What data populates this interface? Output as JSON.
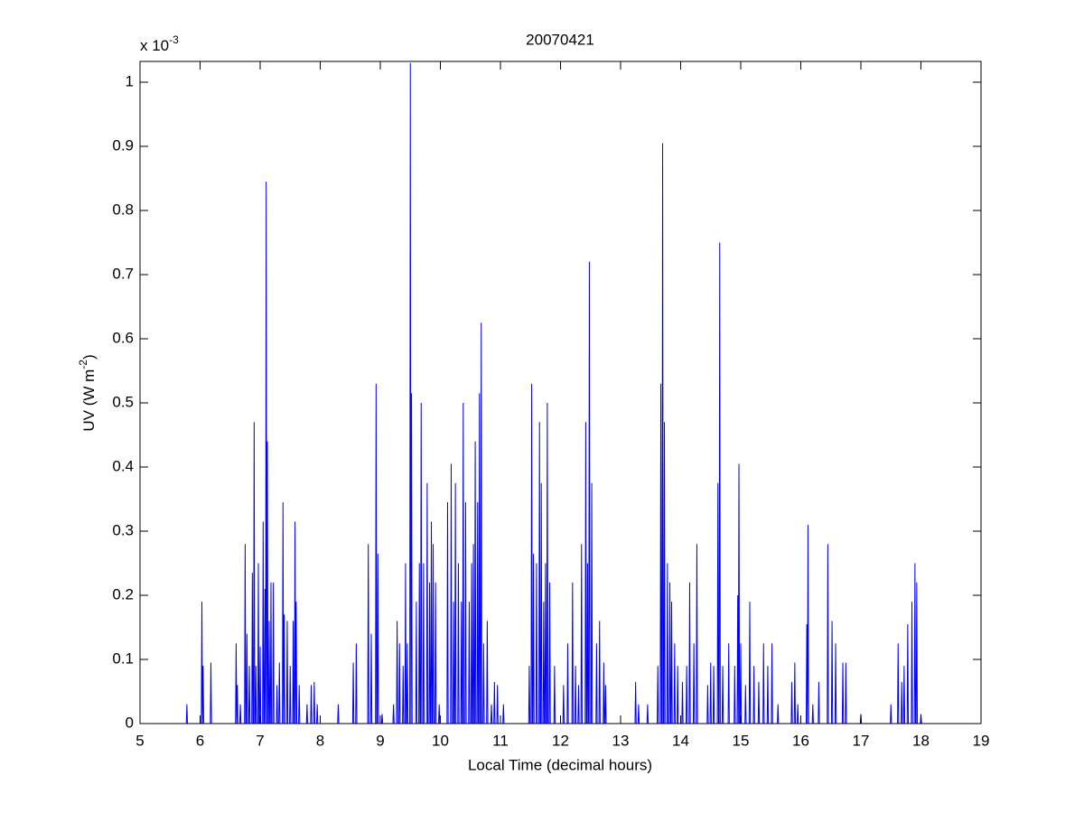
{
  "chart_data": {
    "type": "line",
    "title": "20070421",
    "xlabel": "Local Time (decimal hours)",
    "ylabel": {
      "text": "UV (W m",
      "superscript": "-2",
      "closing": ")"
    },
    "y_multiplier": {
      "text": "x 10",
      "superscript": "-3"
    },
    "xlim": [
      5,
      19
    ],
    "ylim": [
      0,
      1.0324
    ],
    "xticks": [
      5,
      6,
      7,
      8,
      9,
      10,
      11,
      12,
      13,
      14,
      15,
      16,
      17,
      18,
      19
    ],
    "yticks": [
      0,
      0.1,
      0.2,
      0.3,
      0.4,
      0.5,
      0.6,
      0.7,
      0.8,
      0.9,
      1
    ],
    "grid": false,
    "series": [
      {
        "color": "#0000ff",
        "x": [
          5.77,
          5.78,
          5.79,
          6.02,
          6.03,
          6.04,
          6.04,
          6.05,
          6.06,
          6.17,
          6.18,
          6.19,
          6.59,
          6.6,
          6.61,
          6.61,
          6.62,
          6.63,
          6.66,
          6.67,
          6.68,
          6.74,
          6.75,
          6.76,
          6.77,
          6.78,
          6.79,
          6.81,
          6.82,
          6.83,
          6.86,
          6.87,
          6.88,
          6.89,
          6.9,
          6.91,
          6.92,
          6.93,
          6.94,
          6.96,
          6.97,
          6.98,
          6.99,
          7,
          7.01,
          7.04,
          7.05,
          7.06,
          7.07,
          7.08,
          7.09,
          7.09,
          7.1,
          7.11,
          7.11,
          7.12,
          7.13,
          7.14,
          7.15,
          7.16,
          7.17,
          7.18,
          7.19,
          7.21,
          7.22,
          7.23,
          7.27,
          7.28,
          7.29,
          7.31,
          7.32,
          7.33,
          7.37,
          7.38,
          7.39,
          7.39,
          7.4,
          7.41,
          7.44,
          7.45,
          7.46,
          7.49,
          7.5,
          7.51,
          7.54,
          7.55,
          7.56,
          7.57,
          7.58,
          7.59,
          7.59,
          7.6,
          7.61,
          7.64,
          7.65,
          7.66,
          7.77,
          7.78,
          7.79,
          7.84,
          7.85,
          7.86,
          7.89,
          7.9,
          7.91,
          7.94,
          7.95,
          7.96,
          8.29,
          8.3,
          8.31,
          8.54,
          8.55,
          8.56,
          8.59,
          8.6,
          8.61,
          8.79,
          8.8,
          8.81,
          8.84,
          8.85,
          8.86,
          8.92,
          8.93,
          8.94,
          8.95,
          8.96,
          8.97,
          9.02,
          9.03,
          9.04,
          9.21,
          9.22,
          9.23,
          9.27,
          9.28,
          9.29,
          9.31,
          9.32,
          9.33,
          9.37,
          9.38,
          9.39,
          9.41,
          9.42,
          9.43,
          9.44,
          9.45,
          9.46,
          9.49,
          9.5,
          9.51,
          9.51,
          9.52,
          9.53,
          9.59,
          9.6,
          9.61,
          9.64,
          9.65,
          9.66,
          9.67,
          9.68,
          9.69,
          9.71,
          9.72,
          9.73,
          9.77,
          9.78,
          9.79,
          9.81,
          9.82,
          9.83,
          9.84,
          9.85,
          9.86,
          9.87,
          9.88,
          9.89,
          9.91,
          9.92,
          9.93,
          9.97,
          9.98,
          9.99,
          10.11,
          10.12,
          10.13,
          10.17,
          10.18,
          10.19,
          10.21,
          10.22,
          10.23,
          10.24,
          10.25,
          10.26,
          10.29,
          10.3,
          10.31,
          10.34,
          10.35,
          10.36,
          10.37,
          10.38,
          10.39,
          10.41,
          10.42,
          10.43,
          10.47,
          10.48,
          10.49,
          10.51,
          10.52,
          10.53,
          10.54,
          10.55,
          10.56,
          10.57,
          10.58,
          10.59,
          10.61,
          10.62,
          10.63,
          10.64,
          10.65,
          10.66,
          10.67,
          10.68,
          10.69,
          10.71,
          10.72,
          10.73,
          10.77,
          10.78,
          10.79,
          10.84,
          10.85,
          10.86,
          10.89,
          10.9,
          10.91,
          10.94,
          10.95,
          10.96,
          11.04,
          11.05,
          11.06,
          11.47,
          11.48,
          11.49,
          11.51,
          11.52,
          11.53,
          11.54,
          11.55,
          11.56,
          11.59,
          11.6,
          11.61,
          11.64,
          11.65,
          11.66,
          11.67,
          11.68,
          11.69,
          11.71,
          11.72,
          11.73,
          11.74,
          11.75,
          11.76,
          11.77,
          11.78,
          11.79,
          11.81,
          11.82,
          11.83,
          11.89,
          11.9,
          11.91,
          12.04,
          12.05,
          12.06,
          12.11,
          12.12,
          12.13,
          12.19,
          12.2,
          12.21,
          12.24,
          12.25,
          12.26,
          12.29,
          12.3,
          12.31,
          12.34,
          12.35,
          12.36,
          12.41,
          12.42,
          12.43,
          12.44,
          12.45,
          12.46,
          12.47,
          12.48,
          12.49,
          12.51,
          12.52,
          12.53,
          12.59,
          12.6,
          12.61,
          12.64,
          12.65,
          12.66,
          12.71,
          12.72,
          12.73,
          12.74,
          12.75,
          12.76,
          13.24,
          13.25,
          13.26,
          13.29,
          13.3,
          13.31,
          13.44,
          13.45,
          13.46,
          13.61,
          13.62,
          13.63,
          13.66,
          13.67,
          13.68,
          13.69,
          13.7,
          13.71,
          13.72,
          13.73,
          13.74,
          13.77,
          13.78,
          13.79,
          13.81,
          13.82,
          13.83,
          13.84,
          13.85,
          13.86,
          13.89,
          13.9,
          13.91,
          13.94,
          13.95,
          13.96,
          14.02,
          14.03,
          14.04,
          14.09,
          14.1,
          14.11,
          14.14,
          14.15,
          14.16,
          14.21,
          14.22,
          14.23,
          14.26,
          14.27,
          14.28,
          14.44,
          14.45,
          14.46,
          14.49,
          14.5,
          14.51,
          14.54,
          14.55,
          14.56,
          14.61,
          14.62,
          14.63,
          14.64,
          14.65,
          14.66,
          14.69,
          14.7,
          14.71,
          14.79,
          14.8,
          14.81,
          14.89,
          14.9,
          14.91,
          14.94,
          14.95,
          14.96,
          14.96,
          14.97,
          14.98,
          14.99,
          15,
          15.01,
          15.07,
          15.08,
          15.09,
          15.14,
          15.15,
          15.16,
          15.21,
          15.22,
          15.23,
          15.29,
          15.3,
          15.31,
          15.37,
          15.38,
          15.39,
          15.44,
          15.45,
          15.46,
          15.51,
          15.52,
          15.53,
          15.61,
          15.62,
          15.63,
          15.84,
          15.85,
          15.86,
          15.89,
          15.9,
          15.91,
          15.94,
          15.95,
          15.96,
          16.09,
          16.1,
          16.11,
          16.11,
          16.12,
          16.13,
          16.19,
          16.2,
          16.21,
          16.29,
          16.3,
          16.31,
          16.44,
          16.45,
          16.46,
          16.51,
          16.52,
          16.53,
          16.57,
          16.58,
          16.59,
          16.69,
          16.7,
          16.71,
          16.74,
          16.75,
          16.76,
          16.99,
          17,
          17.01,
          17.49,
          17.5,
          17.51,
          17.61,
          17.62,
          17.63,
          17.67,
          17.68,
          17.69,
          17.71,
          17.72,
          17.73,
          17.77,
          17.78,
          17.79,
          17.84,
          17.85,
          17.86,
          17.89,
          17.9,
          17.91,
          17.92,
          17.93,
          17.94,
          17.99,
          18,
          18.01
        ],
        "values": [
          0,
          0.03,
          0,
          0,
          0.19,
          0,
          0,
          0.09,
          0,
          0,
          0.095,
          0,
          0,
          0.125,
          0,
          0,
          0.06,
          0,
          0,
          0.03,
          0,
          0,
          0.28,
          0,
          0,
          0.14,
          0,
          0,
          0.09,
          0,
          0,
          0.235,
          0,
          0,
          0.47,
          0,
          0,
          0.09,
          0,
          0,
          0.25,
          0,
          0,
          0.12,
          0,
          0,
          0.315,
          0,
          0,
          0.21,
          0,
          0,
          0.845,
          0,
          0,
          0.44,
          0,
          0,
          0.16,
          0,
          0,
          0.22,
          0,
          0,
          0.22,
          0,
          0,
          0.06,
          0,
          0,
          0.095,
          0,
          0,
          0.345,
          0,
          0,
          0.17,
          0,
          0,
          0.16,
          0,
          0,
          0.09,
          0,
          0,
          0.16,
          0,
          0,
          0.315,
          0,
          0,
          0.19,
          0,
          0,
          0.06,
          0,
          0,
          0.03,
          0,
          0,
          0.06,
          0,
          0,
          0.065,
          0,
          0,
          0.03,
          0,
          0,
          0.03,
          0,
          0,
          0.095,
          0,
          0,
          0.125,
          0,
          0,
          0.28,
          0,
          0,
          0.14,
          0,
          0,
          0.53,
          0,
          0,
          0.265,
          0,
          0,
          0.015,
          0,
          0,
          0.03,
          0,
          0,
          0.16,
          0,
          0,
          0.125,
          0,
          0,
          0.09,
          0,
          0,
          0.25,
          0,
          0,
          0.125,
          0,
          0,
          1.03,
          0,
          0,
          0.515,
          0,
          0,
          0.19,
          0,
          0,
          0.25,
          0,
          0,
          0.5,
          0,
          0,
          0.25,
          0,
          0,
          0.375,
          0,
          0,
          0.22,
          0,
          0,
          0.315,
          0,
          0,
          0.28,
          0,
          0,
          0.22,
          0,
          0,
          0.03,
          0,
          0,
          0.345,
          0,
          0,
          0.405,
          0,
          0,
          0.19,
          0,
          0,
          0.375,
          0,
          0,
          0.25,
          0,
          0,
          0.19,
          0,
          0,
          0.5,
          0,
          0,
          0.345,
          0,
          0,
          0.19,
          0,
          0,
          0.25,
          0,
          0,
          0.28,
          0,
          0,
          0.44,
          0,
          0,
          0.345,
          0,
          0,
          0.515,
          0,
          0,
          0.625,
          0,
          0,
          0.125,
          0,
          0,
          0.16,
          0,
          0,
          0.03,
          0,
          0,
          0.065,
          0,
          0,
          0.06,
          0,
          0,
          0.03,
          0,
          0,
          0.09,
          0,
          0,
          0.53,
          0,
          0,
          0.265,
          0,
          0,
          0.25,
          0,
          0,
          0.47,
          0,
          0,
          0.375,
          0,
          0,
          0.19,
          0,
          0,
          0.25,
          0,
          0,
          0.5,
          0,
          0,
          0.22,
          0,
          0,
          0.09,
          0,
          0,
          0.06,
          0,
          0,
          0.125,
          0,
          0,
          0.22,
          0,
          0,
          0.09,
          0,
          0,
          0.06,
          0,
          0,
          0.28,
          0,
          0,
          0.47,
          0,
          0,
          0.25,
          0,
          0,
          0.72,
          0,
          0,
          0.375,
          0,
          0,
          0.125,
          0,
          0,
          0.16,
          0,
          0,
          0.095,
          0,
          0,
          0.06,
          0,
          0,
          0.065,
          0,
          0,
          0.03,
          0,
          0,
          0.03,
          0,
          0,
          0.09,
          0,
          0,
          0.53,
          0,
          0,
          0.905,
          0,
          0,
          0.47,
          0,
          0,
          0.25,
          0,
          0,
          0.22,
          0,
          0,
          0.19,
          0,
          0,
          0.125,
          0,
          0,
          0.09,
          0,
          0,
          0.065,
          0,
          0,
          0.09,
          0,
          0,
          0.22,
          0,
          0,
          0.125,
          0,
          0,
          0.28,
          0,
          0,
          0.06,
          0,
          0,
          0.095,
          0,
          0,
          0.09,
          0,
          0,
          0.375,
          0,
          0,
          0.75,
          0,
          0,
          0.09,
          0,
          0,
          0.125,
          0,
          0,
          0.09,
          0,
          0,
          0.2,
          0,
          0,
          0.405,
          0,
          0,
          0.125,
          0,
          0,
          0.06,
          0,
          0,
          0.19,
          0,
          0,
          0.09,
          0,
          0,
          0.065,
          0,
          0,
          0.125,
          0,
          0,
          0.09,
          0,
          0,
          0.125,
          0,
          0,
          0.03,
          0,
          0,
          0.065,
          0,
          0,
          0.095,
          0,
          0,
          0.03,
          0,
          0,
          0.155,
          0,
          0,
          0.31,
          0,
          0,
          0.03,
          0,
          0,
          0.065,
          0,
          0,
          0.28,
          0,
          0,
          0.16,
          0,
          0,
          0.125,
          0,
          0,
          0.095,
          0,
          0,
          0.095,
          0,
          0,
          0.015,
          0,
          0,
          0.03,
          0,
          0,
          0.125,
          0,
          0,
          0.065,
          0,
          0,
          0.09,
          0,
          0,
          0.155,
          0,
          0,
          0.19,
          0,
          0,
          0.25,
          0,
          0,
          0.22,
          0,
          0,
          0.015,
          0
        ]
      }
    ]
  }
}
